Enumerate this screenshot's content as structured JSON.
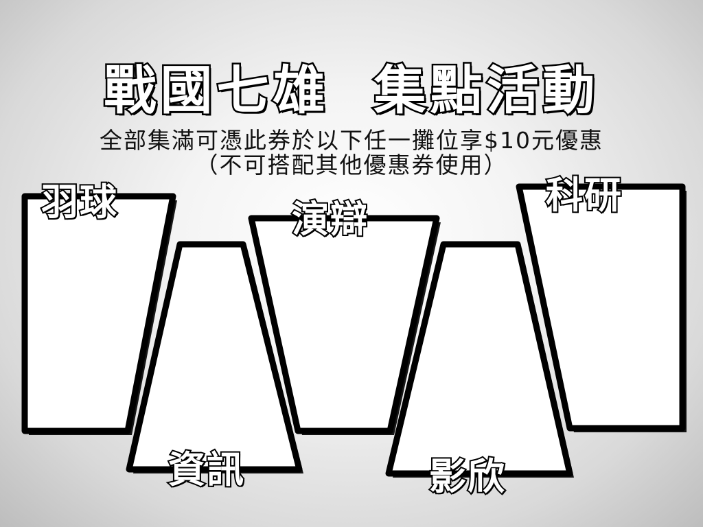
{
  "header": {
    "title": "戰國七雄  集點活動",
    "subtitle_line1": "全部集滿可憑此券於以下任一攤位享$10元優惠",
    "subtitle_line2": "（不可搭配其他優惠券使用）"
  },
  "stalls": [
    {
      "label": "羽球"
    },
    {
      "label": "資訊"
    },
    {
      "label": "演辯"
    },
    {
      "label": "影欣"
    },
    {
      "label": "科研"
    }
  ],
  "colors": {
    "outline": "#000000",
    "panel_fill": "#ffffff"
  }
}
